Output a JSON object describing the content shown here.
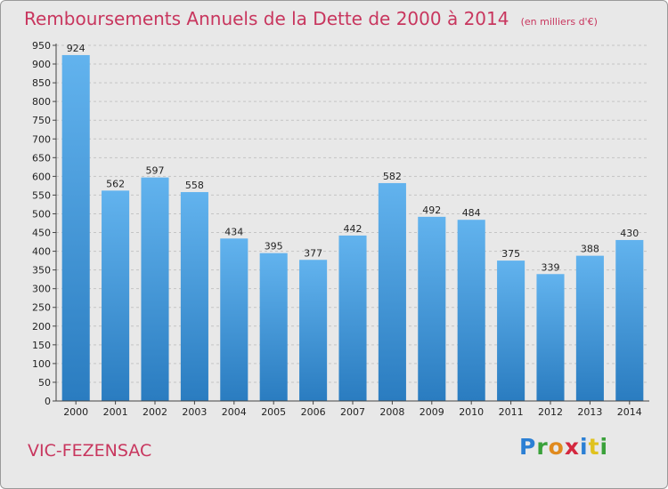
{
  "header": {
    "title": "Remboursements Annuels de la Dette de 2000 à 2014",
    "subtitle": "(en milliers d'€)"
  },
  "footer": {
    "city": "VIC-FEZENSAC",
    "logo_letters": [
      "P",
      "r",
      "o",
      "x",
      "i",
      "t",
      "i"
    ],
    "logo_colors": [
      "#2b7fd4",
      "#3aa13a",
      "#e08a1e",
      "#d4283f",
      "#2b7fd4",
      "#e0c21e",
      "#3aa13a"
    ]
  },
  "chart_data": {
    "type": "bar",
    "title": "Remboursements Annuels de la Dette de 2000 à 2014",
    "categories": [
      "2000",
      "2001",
      "2002",
      "2003",
      "2004",
      "2005",
      "2006",
      "2007",
      "2008",
      "2009",
      "2010",
      "2011",
      "2012",
      "2013",
      "2014"
    ],
    "values": [
      924,
      562,
      597,
      558,
      434,
      395,
      377,
      442,
      582,
      492,
      484,
      375,
      339,
      388,
      430
    ],
    "ylim": [
      0,
      950
    ],
    "yticks": [
      0,
      50,
      100,
      150,
      200,
      250,
      300,
      350,
      400,
      450,
      500,
      550,
      600,
      650,
      700,
      750,
      800,
      850,
      900,
      950
    ],
    "grid": true,
    "bar_color_top": "#62b3ee",
    "bar_color_bottom": "#2a7cc0"
  }
}
